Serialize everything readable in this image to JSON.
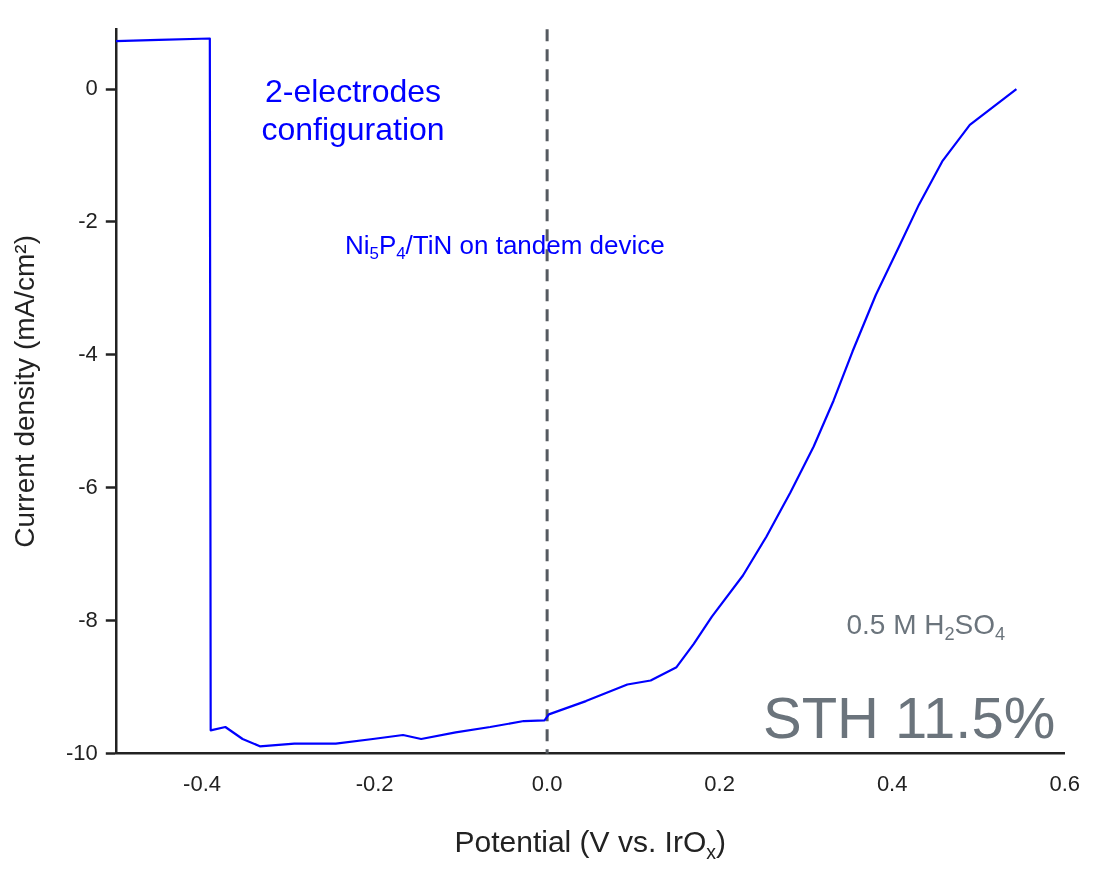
{
  "chart_data": {
    "type": "line",
    "xlabel": "Potential (V vs. IrO$_{x}$)",
    "ylabel": "Current density (mA/cm²)",
    "xlim": [
      -0.5,
      0.6
    ],
    "xticks": [
      -0.4,
      -0.2,
      {
        "value": 0,
        "label": "0.0"
      },
      0.2,
      0.4,
      0.6
    ],
    "ylim": [
      -10,
      0.9
    ],
    "yticks": [
      -10,
      -8,
      -6,
      -4,
      -2,
      0
    ],
    "grid": false,
    "legend": false,
    "marker": "none",
    "line_style": "solid",
    "ref_lines": [
      {
        "axis": "x",
        "value": 0,
        "color": "#555a60",
        "line_style": "dashed"
      }
    ],
    "annotations": [
      "2-electrodes configuration",
      "Ni$_{5}$P$_{4}$/TiN on tandem device",
      "0.5 M H$_{2}$SO$_{4}$",
      "STH 11.5%"
    ],
    "series": [
      {
        "color": "#0000ff",
        "x": [
          -0.5,
          -0.45,
          -0.391,
          -0.39,
          -0.373,
          -0.353,
          -0.333,
          -0.293,
          -0.245,
          -0.202,
          -0.167,
          -0.146,
          -0.106,
          -0.066,
          -0.027,
          -0.003,
          0.002,
          0.045,
          0.093,
          0.12,
          0.15,
          0.17,
          0.191,
          0.227,
          0.254,
          0.282,
          0.309,
          0.332,
          0.354,
          0.381,
          0.408,
          0.431,
          0.458,
          0.49,
          0.544
        ],
        "values": [
          0.72,
          0.74,
          0.76,
          -9.65,
          -9.6,
          -9.78,
          -9.89,
          -9.85,
          -9.85,
          -9.78,
          -9.72,
          -9.78,
          -9.68,
          -9.6,
          -9.51,
          -9.5,
          -9.41,
          -9.21,
          -8.96,
          -8.9,
          -8.7,
          -8.35,
          -7.94,
          -7.32,
          -6.74,
          -6.07,
          -5.38,
          -4.69,
          -3.95,
          -3.1,
          -2.37,
          -1.74,
          -1.09,
          -0.54,
          0
        ]
      }
    ]
  }
}
